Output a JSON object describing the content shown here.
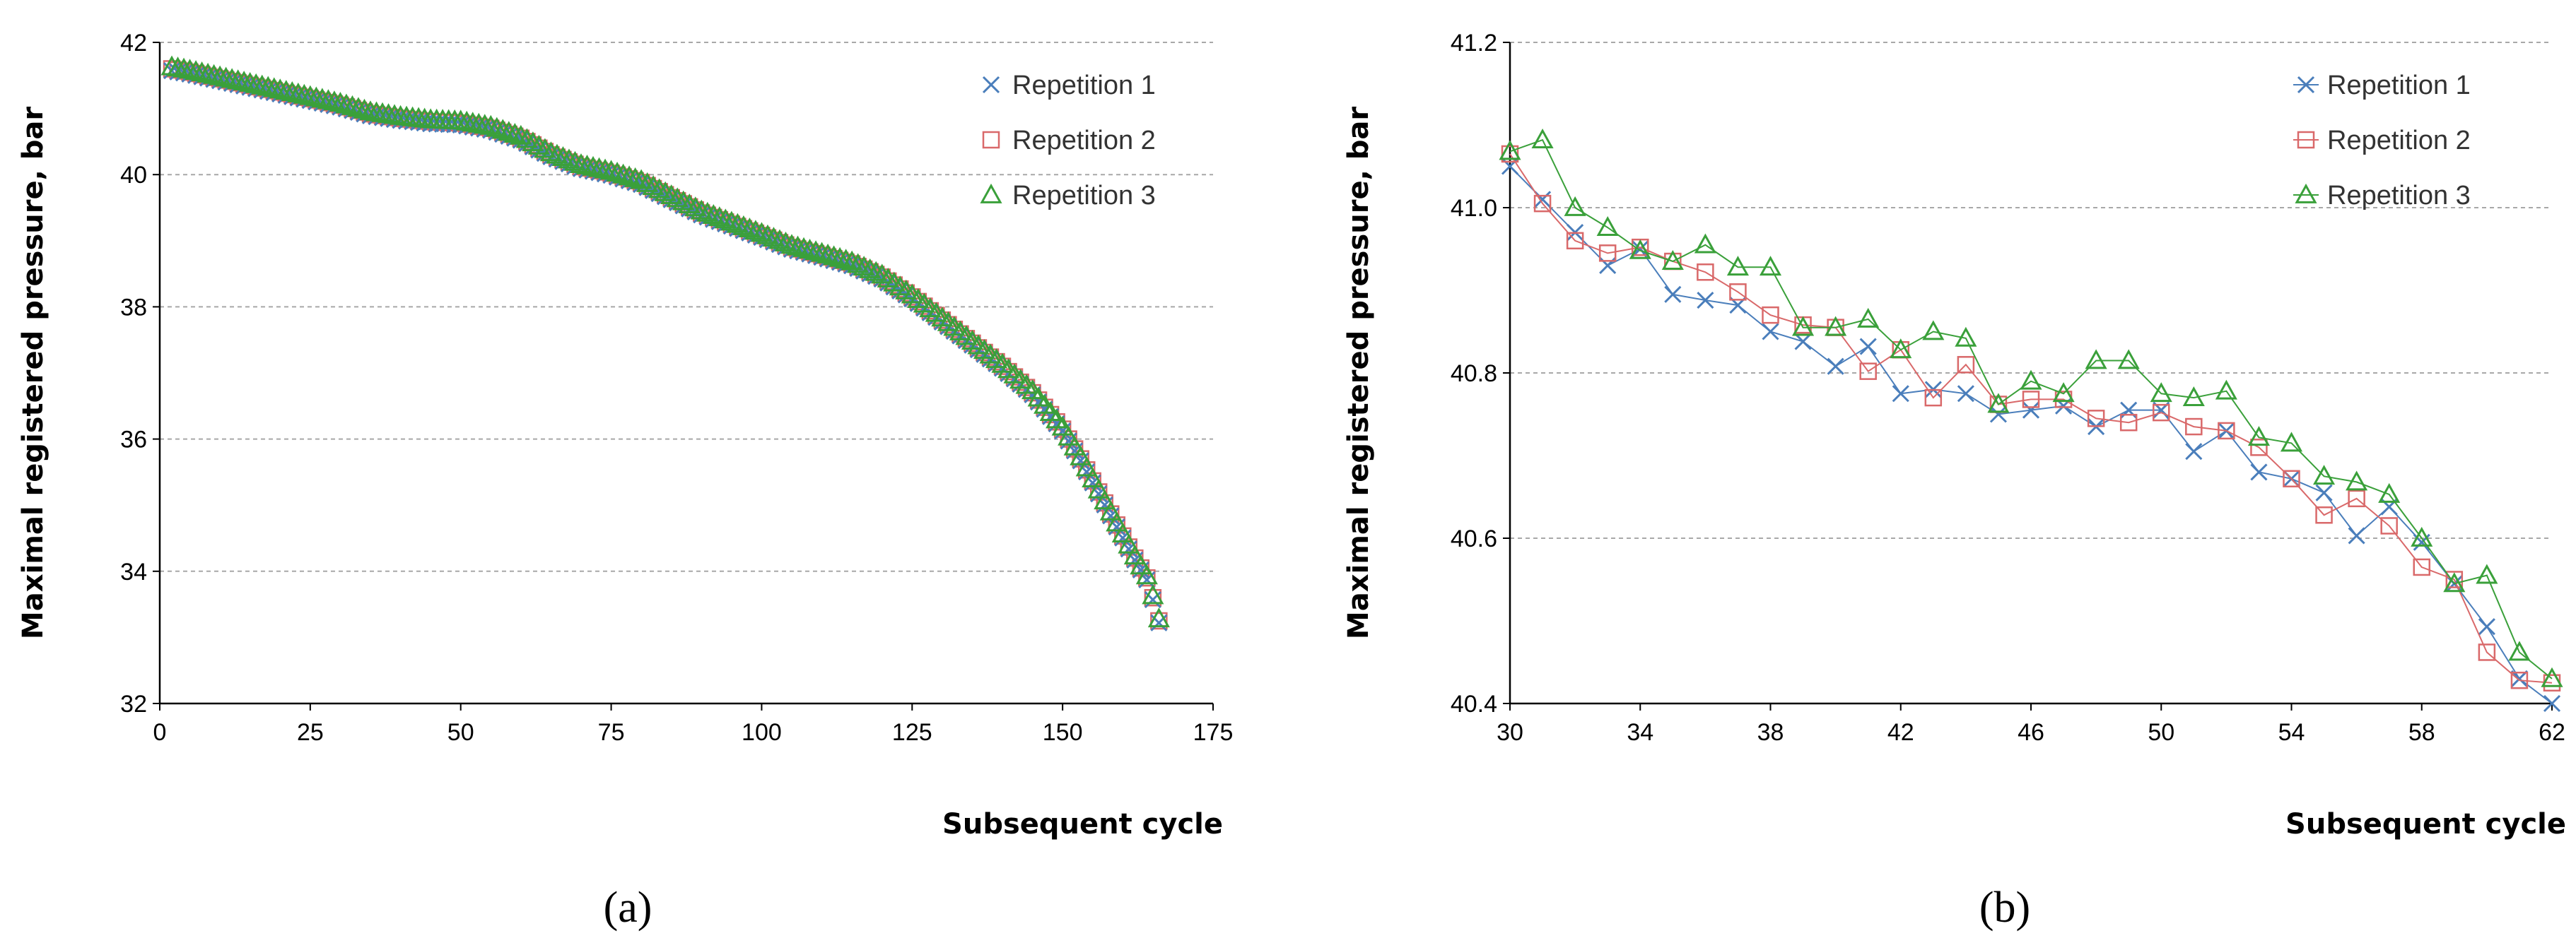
{
  "chart_data": [
    {
      "type": "scatter",
      "panel_label": "(a)",
      "xlabel": "Subsequent cycle",
      "ylabel": "Maximal registered pressure, bar",
      "xlim": [
        0,
        175
      ],
      "ylim": [
        32,
        42
      ],
      "xticks": [
        0,
        25,
        50,
        75,
        100,
        125,
        150,
        175
      ],
      "yticks": [
        32,
        34,
        36,
        38,
        40,
        42
      ],
      "grid": "horizontal dashed",
      "legend_position": "top-right",
      "series": [
        {
          "name": "Repetition 1",
          "marker": "x",
          "color": "#4a7ebb"
        },
        {
          "name": "Repetition 2",
          "marker": "square",
          "color": "#d9696a"
        },
        {
          "name": "Repetition 3",
          "marker": "triangle",
          "color": "#3aa03a"
        }
      ],
      "curve_points": [
        [
          2,
          41.6
        ],
        [
          5,
          41.55
        ],
        [
          10,
          41.45
        ],
        [
          15,
          41.35
        ],
        [
          20,
          41.25
        ],
        [
          25,
          41.15
        ],
        [
          30,
          41.05
        ],
        [
          35,
          40.92
        ],
        [
          40,
          40.85
        ],
        [
          45,
          40.8
        ],
        [
          50,
          40.78
        ],
        [
          55,
          40.7
        ],
        [
          60,
          40.55
        ],
        [
          65,
          40.3
        ],
        [
          70,
          40.12
        ],
        [
          75,
          40.02
        ],
        [
          80,
          39.88
        ],
        [
          85,
          39.65
        ],
        [
          90,
          39.42
        ],
        [
          95,
          39.25
        ],
        [
          100,
          39.08
        ],
        [
          105,
          38.9
        ],
        [
          110,
          38.78
        ],
        [
          115,
          38.65
        ],
        [
          120,
          38.45
        ],
        [
          125,
          38.15
        ],
        [
          130,
          37.8
        ],
        [
          135,
          37.45
        ],
        [
          140,
          37.1
        ],
        [
          145,
          36.7
        ],
        [
          150,
          36.15
        ],
        [
          153,
          35.7
        ],
        [
          156,
          35.2
        ],
        [
          159,
          34.7
        ],
        [
          162,
          34.2
        ],
        [
          164,
          33.9
        ],
        [
          165,
          33.6
        ],
        [
          166,
          33.25
        ]
      ]
    },
    {
      "type": "line",
      "panel_label": "(b)",
      "xlabel": "Subsequent cycle",
      "ylabel": "Maximal registered pressure, bar",
      "xlim": [
        30,
        62
      ],
      "ylim": [
        40.4,
        41.2
      ],
      "xticks": [
        30,
        34,
        38,
        42,
        46,
        50,
        54,
        58,
        62
      ],
      "yticks": [
        40.4,
        40.6,
        40.8,
        41.0,
        41.2
      ],
      "ytick_labels": [
        "40.4",
        "40.6",
        "40.8",
        "41.0",
        "41.2"
      ],
      "grid": "horizontal dashed",
      "legend_position": "top-right",
      "x": [
        30,
        31,
        32,
        33,
        34,
        35,
        36,
        37,
        38,
        39,
        40,
        41,
        42,
        43,
        44,
        45,
        46,
        47,
        48,
        49,
        50,
        51,
        52,
        53,
        54,
        55,
        56,
        57,
        58,
        59,
        60,
        61,
        62
      ],
      "series": [
        {
          "name": "Repetition 1",
          "marker": "x",
          "color": "#4a7ebb",
          "values": [
            41.05,
            41.01,
            40.97,
            40.93,
            40.95,
            40.895,
            40.888,
            40.882,
            40.85,
            40.838,
            40.808,
            40.832,
            40.775,
            40.78,
            40.775,
            40.75,
            40.755,
            40.76,
            40.735,
            40.755,
            40.755,
            40.705,
            40.73,
            40.68,
            40.672,
            40.655,
            40.603,
            40.638,
            40.595,
            40.545,
            40.493,
            40.43,
            40.4
          ]
        },
        {
          "name": "Repetition 2",
          "marker": "square",
          "color": "#d9696a",
          "values": [
            41.065,
            41.005,
            40.96,
            40.945,
            40.952,
            40.935,
            40.922,
            40.898,
            40.87,
            40.858,
            40.855,
            40.802,
            40.828,
            40.77,
            40.81,
            40.762,
            40.768,
            40.768,
            40.745,
            40.74,
            40.752,
            40.735,
            40.73,
            40.71,
            40.672,
            40.628,
            40.648,
            40.615,
            40.565,
            40.55,
            40.462,
            40.428,
            40.425
          ]
        },
        {
          "name": "Repetition 3",
          "marker": "triangle",
          "color": "#3aa03a",
          "values": [
            41.068,
            41.082,
            41.0,
            40.976,
            40.948,
            40.935,
            40.955,
            40.928,
            40.928,
            40.855,
            40.855,
            40.865,
            40.828,
            40.85,
            40.842,
            40.762,
            40.79,
            40.775,
            40.815,
            40.815,
            40.775,
            40.77,
            40.778,
            40.722,
            40.715,
            40.675,
            40.668,
            40.653,
            40.6,
            40.545,
            40.555,
            40.462,
            40.43
          ]
        }
      ]
    }
  ]
}
